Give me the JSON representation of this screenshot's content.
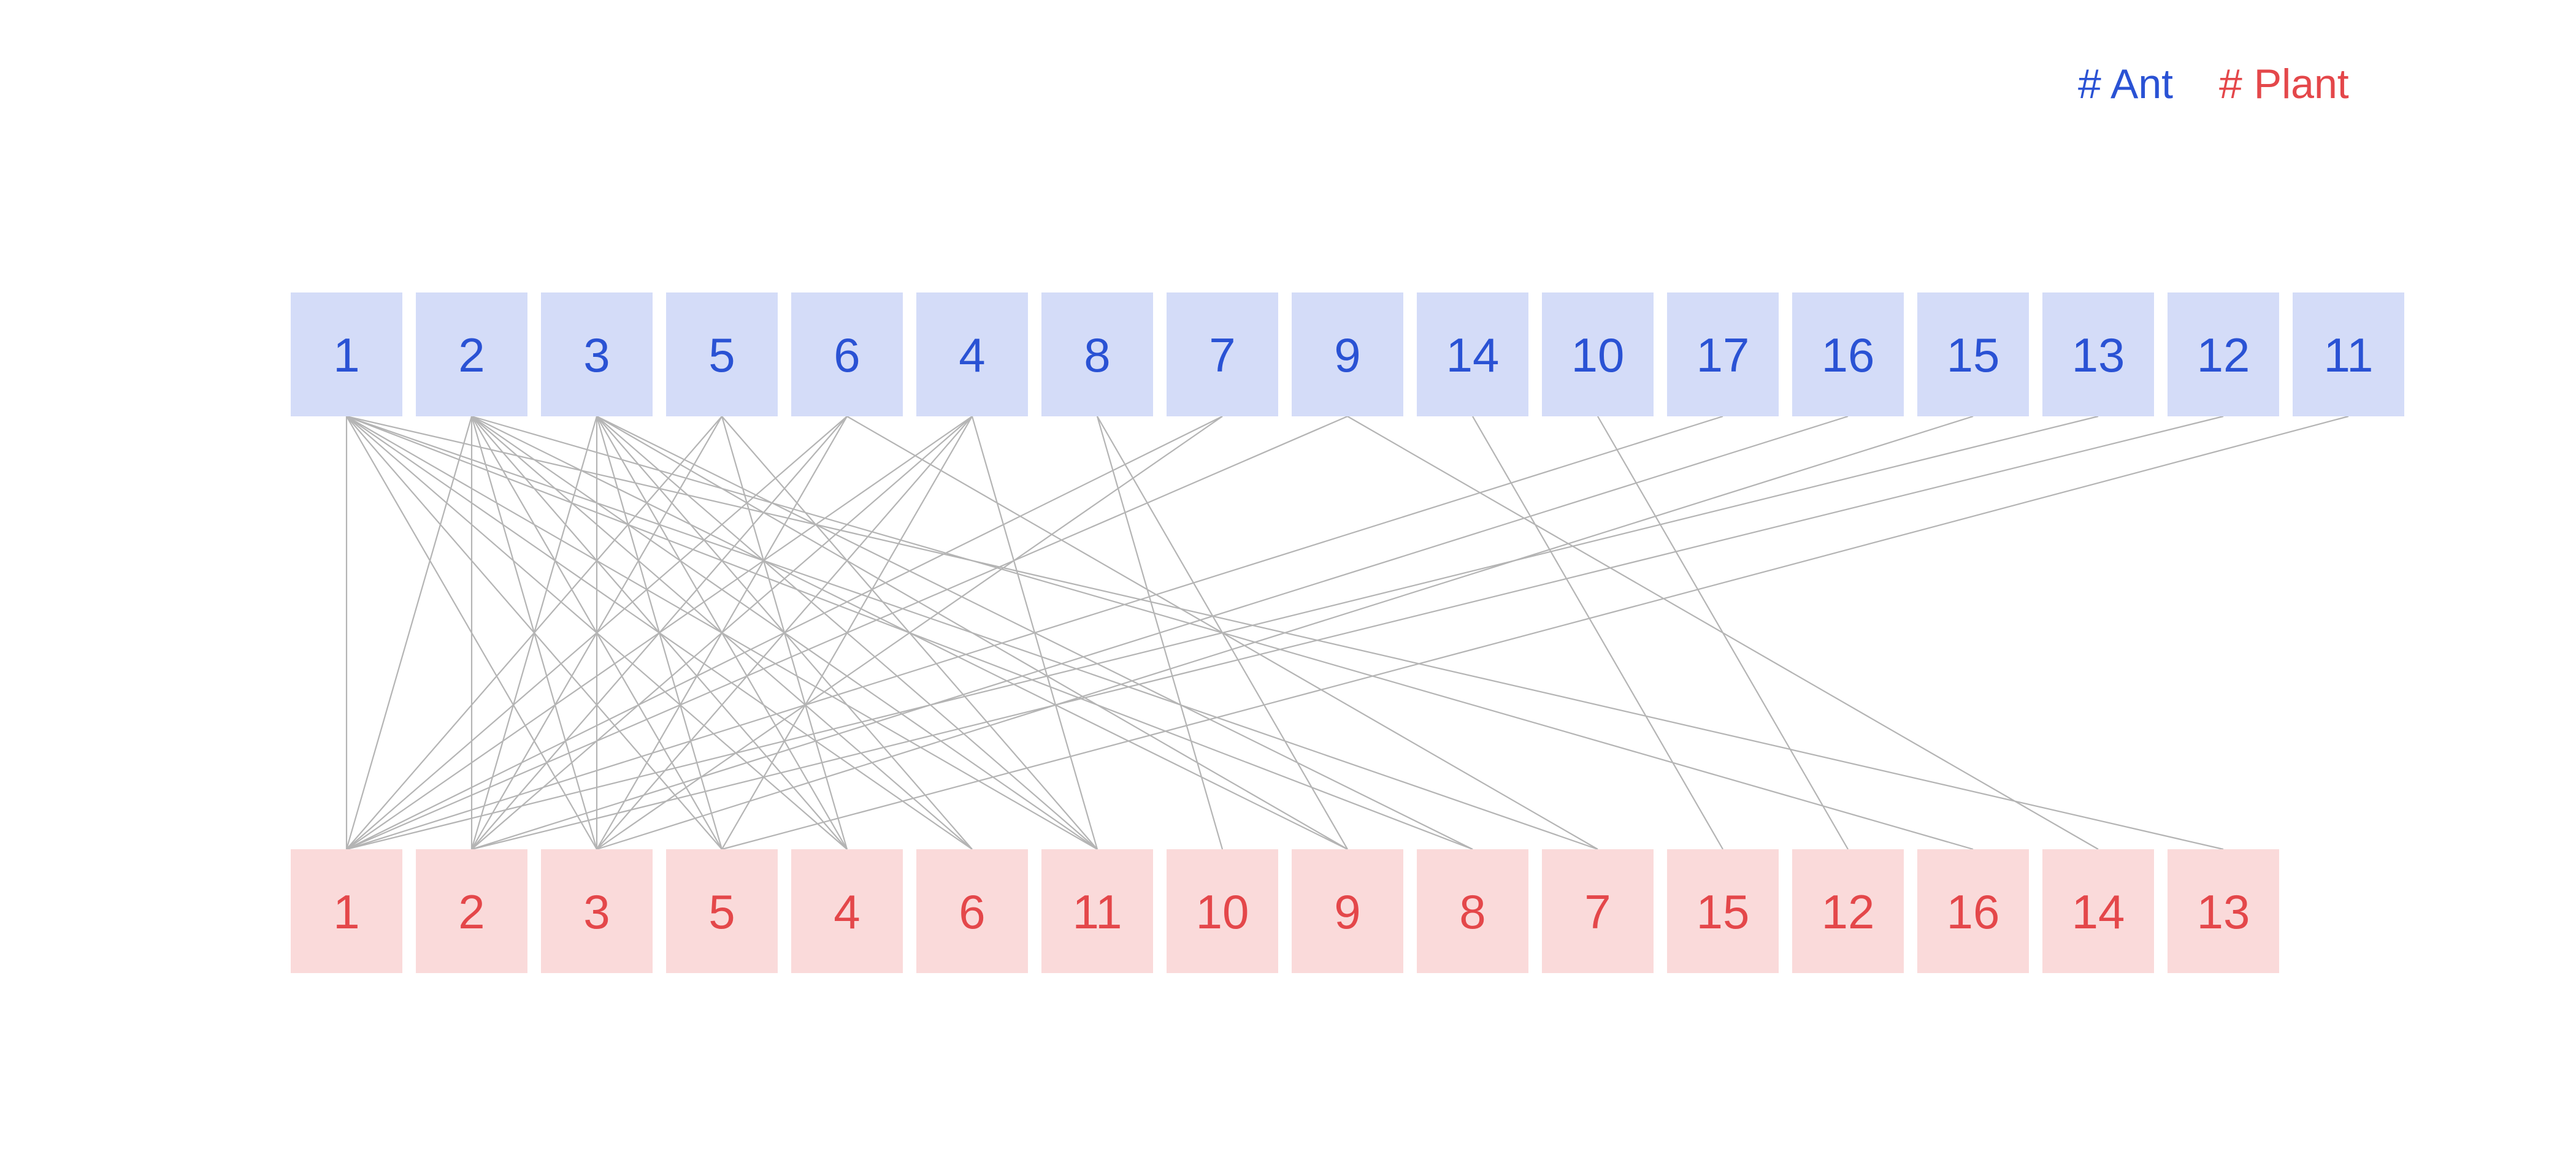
{
  "legend": {
    "ant_label": "# Ant",
    "plant_label": "# Plant"
  },
  "colors": {
    "ant_fill": "#d4dcf8",
    "ant_text": "#2a52d4",
    "plant_fill": "#fadada",
    "plant_text": "#e4474a",
    "edge": "#b4b4b4"
  },
  "ants": [
    "1",
    "2",
    "3",
    "5",
    "6",
    "4",
    "8",
    "7",
    "9",
    "14",
    "10",
    "17",
    "16",
    "15",
    "13",
    "12",
    "11"
  ],
  "plants": [
    "1",
    "2",
    "3",
    "5",
    "4",
    "6",
    "11",
    "10",
    "9",
    "8",
    "7",
    "15",
    "12",
    "16",
    "14",
    "13"
  ],
  "edges": [
    [
      "1",
      "1"
    ],
    [
      "1",
      "3"
    ],
    [
      "1",
      "5"
    ],
    [
      "1",
      "4"
    ],
    [
      "1",
      "6"
    ],
    [
      "1",
      "11"
    ],
    [
      "1",
      "8"
    ],
    [
      "1",
      "7"
    ],
    [
      "1",
      "13"
    ],
    [
      "2",
      "1"
    ],
    [
      "2",
      "2"
    ],
    [
      "2",
      "3"
    ],
    [
      "2",
      "5"
    ],
    [
      "2",
      "4"
    ],
    [
      "2",
      "6"
    ],
    [
      "2",
      "11"
    ],
    [
      "2",
      "9"
    ],
    [
      "2",
      "16"
    ],
    [
      "3",
      "2"
    ],
    [
      "3",
      "3"
    ],
    [
      "3",
      "5"
    ],
    [
      "3",
      "4"
    ],
    [
      "3",
      "6"
    ],
    [
      "3",
      "11"
    ],
    [
      "3",
      "9"
    ],
    [
      "3",
      "8"
    ],
    [
      "5",
      "1"
    ],
    [
      "5",
      "2"
    ],
    [
      "5",
      "4"
    ],
    [
      "5",
      "11"
    ],
    [
      "6",
      "1"
    ],
    [
      "6",
      "2"
    ],
    [
      "6",
      "3"
    ],
    [
      "6",
      "7"
    ],
    [
      "4",
      "1"
    ],
    [
      "4",
      "2"
    ],
    [
      "4",
      "3"
    ],
    [
      "4",
      "5"
    ],
    [
      "4",
      "11"
    ],
    [
      "8",
      "10"
    ],
    [
      "8",
      "9"
    ],
    [
      "7",
      "1"
    ],
    [
      "7",
      "3"
    ],
    [
      "9",
      "1"
    ],
    [
      "9",
      "14"
    ],
    [
      "14",
      "15"
    ],
    [
      "10",
      "12"
    ],
    [
      "17",
      "1"
    ],
    [
      "16",
      "2"
    ],
    [
      "15",
      "3"
    ],
    [
      "13",
      "1"
    ],
    [
      "12",
      "2"
    ],
    [
      "11",
      "5"
    ]
  ]
}
